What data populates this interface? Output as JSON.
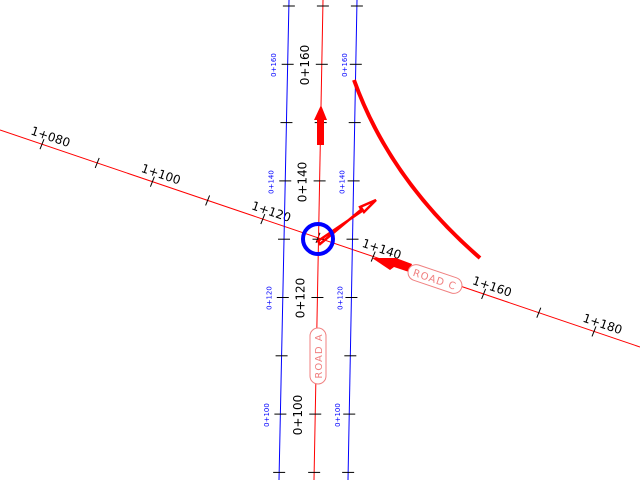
{
  "colors": {
    "centerline": "#ff0000",
    "offset": "#0000ff",
    "ticks": "#000000",
    "road_label": "#f08080",
    "marker": "#0000ff"
  },
  "road_c": {
    "name": "ROAD C",
    "stations": [
      "1+080",
      "1+100",
      "1+120",
      "1+140",
      "1+160",
      "1+180"
    ]
  },
  "road_a": {
    "name": "ROAD A",
    "stations": [
      "0+160",
      "0+140",
      "0+120",
      "0+100"
    ],
    "left_offset_stations": [
      "0+160",
      "0+140",
      "0+120",
      "0+100"
    ],
    "right_offset_stations": [
      "0+160",
      "0+140",
      "0+120",
      "0+100"
    ]
  }
}
